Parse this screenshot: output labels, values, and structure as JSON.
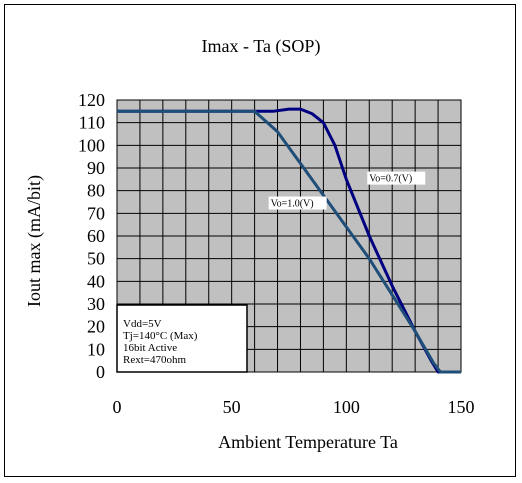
{
  "chart_data": {
    "type": "line",
    "title": "Imax - Ta  (SOP)",
    "xlabel": "Ambient Temperature Ta",
    "ylabel": "Iout max (mA/bit)",
    "xlim": [
      0,
      150
    ],
    "ylim": [
      0,
      120
    ],
    "x_ticks": [
      0,
      50,
      100,
      150
    ],
    "y_ticks": [
      0,
      10,
      20,
      30,
      40,
      50,
      60,
      70,
      80,
      90,
      100,
      110,
      120
    ],
    "grid": true,
    "plot_background": "#c0c0c0",
    "series": [
      {
        "name": "Vo=0.7(V)",
        "color": "#000080",
        "points": [
          [
            0,
            115
          ],
          [
            60,
            115
          ],
          [
            68,
            115
          ],
          [
            75,
            116
          ],
          [
            80,
            116
          ],
          [
            85,
            114
          ],
          [
            90,
            110
          ],
          [
            95,
            100
          ],
          [
            100,
            85
          ],
          [
            110,
            60
          ],
          [
            120,
            38
          ],
          [
            130,
            18
          ],
          [
            137,
            5
          ],
          [
            140,
            0
          ],
          [
            150,
            0
          ]
        ]
      },
      {
        "name": "Vo=1.0(V)",
        "color": "#1f4e79",
        "points": [
          [
            0,
            115
          ],
          [
            60,
            115
          ],
          [
            70,
            106
          ],
          [
            80,
            92
          ],
          [
            90,
            78
          ],
          [
            100,
            64
          ],
          [
            110,
            50
          ],
          [
            120,
            34
          ],
          [
            130,
            18
          ],
          [
            138,
            4
          ],
          [
            141,
            0
          ],
          [
            150,
            0
          ]
        ]
      }
    ],
    "annotations": [
      {
        "text": "Vo=0.7(V)",
        "x": 110,
        "y": 84
      },
      {
        "text": "Vo=1.0(V)",
        "x": 67,
        "y": 73
      }
    ],
    "conditions_box": [
      "Vdd=5V",
      "Tj=140°C (Max)",
      "16bit Active",
      "Rext=470ohm"
    ]
  }
}
